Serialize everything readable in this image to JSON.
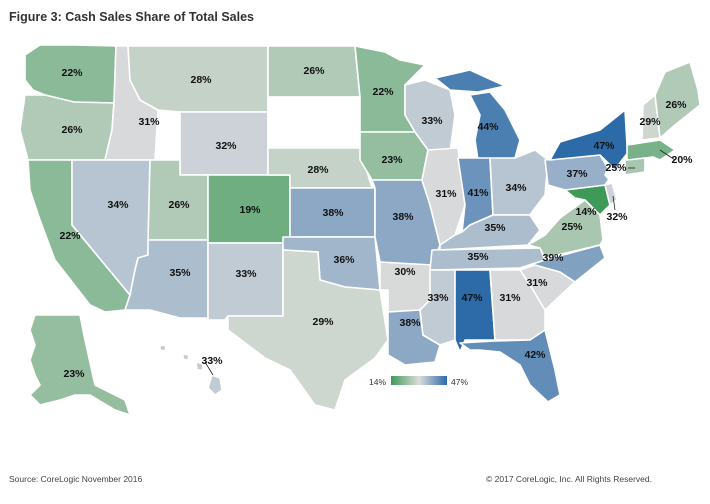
{
  "title": "Figure 3: Cash Sales Share of Total Sales",
  "legend": {
    "min_label": "14%",
    "max_label": "47%",
    "min": 14,
    "max": 47
  },
  "colors": {
    "low": "#3f9a58",
    "mid": "#dcdcdc",
    "high": "#2c6aa8"
  },
  "states": {
    "WA": "22%",
    "OR": "26%",
    "CA": "22%",
    "ID": "31%",
    "NV": "34%",
    "MT": "28%",
    "WY": "32%",
    "UT": "26%",
    "AZ": "35%",
    "CO": "19%",
    "NM": "33%",
    "ND": "26%",
    "SD": "",
    "NE": "28%",
    "KS": "38%",
    "OK": "36%",
    "TX": "29%",
    "MN": "22%",
    "IA": "23%",
    "MO": "38%",
    "AR": "30%",
    "LA": "38%",
    "WI": "33%",
    "IL": "31%",
    "MI": "44%",
    "IN": "41%",
    "OH": "34%",
    "KY": "35%",
    "TN": "35%",
    "MS": "33%",
    "AL": "47%",
    "GA": "31%",
    "FL": "42%",
    "SC": "31%",
    "NC": "39%",
    "VA": "25%",
    "WV": "",
    "MD": "14%",
    "DE": "32%",
    "PA": "37%",
    "NY": "47%",
    "NJ": "",
    "CT": "25%",
    "MA": "20%",
    "VT": "",
    "NH": "29%",
    "ME": "26%",
    "AK": "23%",
    "HI": "33%"
  },
  "footer": {
    "source": "Source: CoreLogic November 2016",
    "copyright": "© 2017 CoreLogic, Inc. All Rights Reserved."
  }
}
